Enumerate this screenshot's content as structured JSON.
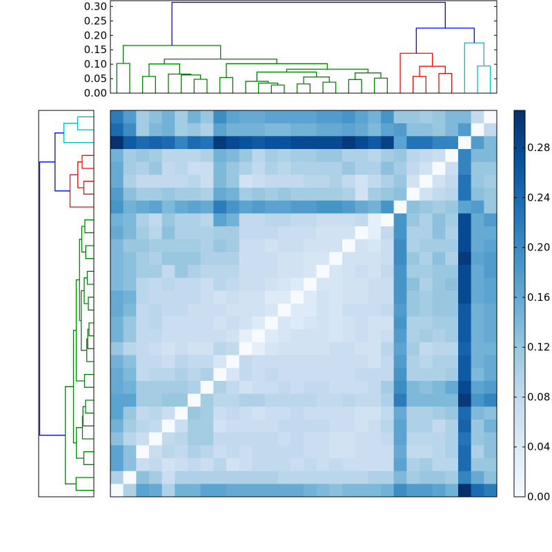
{
  "chart_data": [
    {
      "type": "dendrogram",
      "orientation": "top",
      "name": "column-dendrogram",
      "yticks": [
        "0.00",
        "0.05",
        "0.10",
        "0.15",
        "0.20",
        "0.25",
        "0.30"
      ],
      "ylim": [
        0,
        0.32
      ],
      "n_leaves": 30,
      "colors": {
        "green": "#008000",
        "red": "#ff0000",
        "cyan": "#00bfbf",
        "blue": "#0000ff"
      },
      "links": [
        {
          "l": [
            0,
            1
          ],
          "h": 0.103,
          "c": "green"
        },
        {
          "l": [
            2,
            3
          ],
          "h": 0.058,
          "c": "green"
        },
        {
          "l": [
            6,
            7
          ],
          "h": 0.048,
          "c": "green"
        },
        {
          "l": [
            5,
            "6-7"
          ],
          "h": 0.063,
          "c": "green"
        },
        {
          "l": [
            4,
            "5-7"
          ],
          "h": 0.066,
          "c": "green"
        },
        {
          "l": [
            "2-3",
            "4-7"
          ],
          "h": 0.101,
          "c": "green"
        },
        {
          "l": [
            8,
            9
          ],
          "h": 0.054,
          "c": "green"
        },
        {
          "l": [
            12,
            13
          ],
          "h": 0.028,
          "c": "green"
        },
        {
          "l": [
            11,
            "12-13"
          ],
          "h": 0.035,
          "c": "green"
        },
        {
          "l": [
            10,
            "11-13"
          ],
          "h": 0.041,
          "c": "green"
        },
        {
          "l": [
            14,
            15
          ],
          "h": 0.032,
          "c": "green"
        },
        {
          "l": [
            16,
            17
          ],
          "h": 0.038,
          "c": "green"
        },
        {
          "l": [
            "14-15",
            "16-17"
          ],
          "h": 0.056,
          "c": "green"
        },
        {
          "l": [
            "10-13",
            "14-17"
          ],
          "h": 0.073,
          "c": "green"
        },
        {
          "l": [
            18,
            19
          ],
          "h": 0.047,
          "c": "green"
        },
        {
          "l": [
            20,
            21
          ],
          "h": 0.052,
          "c": "green"
        },
        {
          "l": [
            "18-19",
            "20-21"
          ],
          "h": 0.07,
          "c": "green"
        },
        {
          "l": [
            "10-17",
            "18-21"
          ],
          "h": 0.083,
          "c": "green"
        },
        {
          "l": [
            "8-9",
            "10-21"
          ],
          "h": 0.102,
          "c": "green"
        },
        {
          "l": [
            "2-7",
            "8-21"
          ],
          "h": 0.118,
          "c": "green"
        },
        {
          "l": [
            "0-1",
            "2-21"
          ],
          "h": 0.165,
          "c": "green"
        },
        {
          "l": [
            23,
            24
          ],
          "h": 0.058,
          "c": "red"
        },
        {
          "l": [
            25,
            26
          ],
          "h": 0.068,
          "c": "red"
        },
        {
          "l": [
            "23-24",
            "25-26"
          ],
          "h": 0.093,
          "c": "red"
        },
        {
          "l": [
            22,
            "23-26"
          ],
          "h": 0.138,
          "c": "red"
        },
        {
          "l": [
            28,
            29
          ],
          "h": 0.094,
          "c": "cyan"
        },
        {
          "l": [
            27,
            "28-29"
          ],
          "h": 0.174,
          "c": "cyan"
        },
        {
          "l": [
            "22-26",
            "27-29"
          ],
          "h": 0.225,
          "c": "blue"
        },
        {
          "l": [
            "0-21",
            "22-29"
          ],
          "h": 0.314,
          "c": "blue"
        }
      ]
    },
    {
      "type": "dendrogram",
      "orientation": "left",
      "name": "row-dendrogram",
      "note": "mirror of column dendrogram, leaves ordered top-to-bottom as columns 29..0"
    },
    {
      "type": "heatmap",
      "name": "distance-matrix",
      "rows": 30,
      "cols": 30,
      "vmin": 0.0,
      "vmax": 0.31,
      "colormap": "Blues",
      "colorbar_ticks": [
        "0.00",
        "0.04",
        "0.08",
        "0.12",
        "0.16",
        "0.20",
        "0.24",
        "0.28"
      ],
      "row_order_note": "row i (top=0) shows distances of leaf 29-i to column leaves 0..29",
      "values": [
        [
          0.22,
          0.18,
          0.11,
          0.13,
          0.15,
          0.11,
          0.15,
          0.12,
          0.2,
          0.17,
          0.16,
          0.16,
          0.17,
          0.17,
          0.17,
          0.17,
          0.18,
          0.18,
          0.19,
          0.17,
          0.15,
          0.19,
          0.12,
          0.12,
          0.11,
          0.12,
          0.14,
          0.14,
          0.08,
          0.0
        ],
        [
          0.24,
          0.2,
          0.11,
          0.14,
          0.15,
          0.11,
          0.12,
          0.1,
          0.17,
          0.15,
          0.15,
          0.15,
          0.14,
          0.14,
          0.15,
          0.15,
          0.16,
          0.16,
          0.17,
          0.16,
          0.14,
          0.17,
          0.18,
          0.13,
          0.13,
          0.12,
          0.14,
          0.18,
          0.0,
          0.08
        ],
        [
          0.31,
          0.26,
          0.24,
          0.25,
          0.24,
          0.21,
          0.24,
          0.23,
          0.3,
          0.28,
          0.27,
          0.26,
          0.27,
          0.27,
          0.28,
          0.28,
          0.28,
          0.28,
          0.3,
          0.28,
          0.26,
          0.29,
          0.17,
          0.23,
          0.23,
          0.21,
          0.21,
          0.0,
          0.18,
          0.14
        ],
        [
          0.15,
          0.11,
          0.12,
          0.11,
          0.09,
          0.09,
          0.09,
          0.1,
          0.15,
          0.14,
          0.12,
          0.09,
          0.11,
          0.1,
          0.11,
          0.11,
          0.12,
          0.12,
          0.1,
          0.1,
          0.09,
          0.11,
          0.12,
          0.09,
          0.08,
          0.07,
          0.0,
          0.21,
          0.14,
          0.14
        ],
        [
          0.16,
          0.11,
          0.1,
          0.12,
          0.08,
          0.09,
          0.07,
          0.07,
          0.14,
          0.12,
          0.1,
          0.08,
          0.1,
          0.09,
          0.1,
          0.1,
          0.1,
          0.1,
          0.12,
          0.1,
          0.1,
          0.13,
          0.11,
          0.08,
          0.06,
          0.0,
          0.07,
          0.21,
          0.12,
          0.12
        ],
        [
          0.16,
          0.1,
          0.08,
          0.08,
          0.08,
          0.08,
          0.09,
          0.07,
          0.14,
          0.12,
          0.06,
          0.07,
          0.08,
          0.08,
          0.08,
          0.09,
          0.09,
          0.1,
          0.08,
          0.06,
          0.08,
          0.1,
          0.12,
          0.06,
          0.0,
          0.06,
          0.08,
          0.23,
          0.12,
          0.11
        ],
        [
          0.18,
          0.13,
          0.11,
          0.11,
          0.12,
          0.11,
          0.11,
          0.1,
          0.16,
          0.15,
          0.11,
          0.12,
          0.11,
          0.12,
          0.11,
          0.11,
          0.11,
          0.11,
          0.1,
          0.06,
          0.11,
          0.12,
          0.13,
          0.0,
          0.06,
          0.08,
          0.09,
          0.23,
          0.13,
          0.12
        ],
        [
          0.19,
          0.15,
          0.16,
          0.17,
          0.14,
          0.16,
          0.17,
          0.16,
          0.22,
          0.19,
          0.17,
          0.18,
          0.17,
          0.17,
          0.18,
          0.18,
          0.19,
          0.19,
          0.18,
          0.16,
          0.15,
          0.19,
          0.0,
          0.13,
          0.12,
          0.11,
          0.12,
          0.17,
          0.18,
          0.12
        ],
        [
          0.15,
          0.14,
          0.1,
          0.08,
          0.12,
          0.1,
          0.1,
          0.09,
          0.17,
          0.15,
          0.08,
          0.08,
          0.09,
          0.09,
          0.08,
          0.08,
          0.07,
          0.07,
          0.07,
          0.08,
          0.03,
          0.0,
          0.19,
          0.12,
          0.1,
          0.13,
          0.11,
          0.28,
          0.16,
          0.18
        ],
        [
          0.16,
          0.14,
          0.11,
          0.09,
          0.13,
          0.1,
          0.1,
          0.1,
          0.11,
          0.11,
          0.08,
          0.08,
          0.08,
          0.07,
          0.07,
          0.07,
          0.06,
          0.06,
          0.06,
          0.0,
          0.03,
          0.08,
          0.19,
          0.1,
          0.1,
          0.13,
          0.1,
          0.28,
          0.16,
          0.16
        ],
        [
          0.14,
          0.12,
          0.12,
          0.11,
          0.11,
          0.11,
          0.11,
          0.1,
          0.12,
          0.11,
          0.07,
          0.07,
          0.06,
          0.07,
          0.07,
          0.06,
          0.06,
          0.06,
          0.0,
          0.06,
          0.05,
          0.07,
          0.2,
          0.1,
          0.11,
          0.11,
          0.11,
          0.28,
          0.16,
          0.17
        ],
        [
          0.14,
          0.13,
          0.11,
          0.1,
          0.12,
          0.12,
          0.12,
          0.1,
          0.1,
          0.1,
          0.07,
          0.07,
          0.07,
          0.06,
          0.06,
          0.05,
          0.05,
          0.0,
          0.06,
          0.06,
          0.06,
          0.07,
          0.2,
          0.12,
          0.1,
          0.13,
          0.1,
          0.3,
          0.17,
          0.18
        ],
        [
          0.14,
          0.13,
          0.11,
          0.11,
          0.08,
          0.12,
          0.1,
          0.09,
          0.09,
          0.09,
          0.07,
          0.07,
          0.07,
          0.06,
          0.06,
          0.05,
          0.0,
          0.05,
          0.06,
          0.07,
          0.06,
          0.08,
          0.19,
          0.11,
          0.11,
          0.12,
          0.12,
          0.28,
          0.16,
          0.18
        ],
        [
          0.14,
          0.13,
          0.09,
          0.08,
          0.09,
          0.08,
          0.08,
          0.07,
          0.09,
          0.08,
          0.07,
          0.07,
          0.06,
          0.05,
          0.04,
          0.0,
          0.05,
          0.05,
          0.06,
          0.06,
          0.07,
          0.07,
          0.19,
          0.13,
          0.1,
          0.12,
          0.13,
          0.28,
          0.16,
          0.17
        ],
        [
          0.16,
          0.15,
          0.09,
          0.08,
          0.08,
          0.08,
          0.08,
          0.07,
          0.06,
          0.07,
          0.06,
          0.06,
          0.04,
          0.04,
          0.0,
          0.04,
          0.06,
          0.05,
          0.06,
          0.06,
          0.07,
          0.07,
          0.19,
          0.12,
          0.11,
          0.12,
          0.12,
          0.28,
          0.16,
          0.17
        ],
        [
          0.16,
          0.14,
          0.08,
          0.09,
          0.08,
          0.08,
          0.07,
          0.07,
          0.07,
          0.06,
          0.06,
          0.06,
          0.05,
          0.0,
          0.04,
          0.04,
          0.06,
          0.05,
          0.07,
          0.07,
          0.07,
          0.08,
          0.18,
          0.12,
          0.11,
          0.12,
          0.12,
          0.26,
          0.15,
          0.16
        ],
        [
          0.15,
          0.12,
          0.08,
          0.09,
          0.07,
          0.07,
          0.07,
          0.07,
          0.06,
          0.07,
          0.06,
          0.04,
          0.0,
          0.05,
          0.04,
          0.05,
          0.06,
          0.05,
          0.06,
          0.07,
          0.06,
          0.06,
          0.19,
          0.1,
          0.1,
          0.11,
          0.11,
          0.26,
          0.15,
          0.16
        ],
        [
          0.15,
          0.12,
          0.08,
          0.08,
          0.07,
          0.07,
          0.07,
          0.07,
          0.07,
          0.06,
          0.03,
          0.0,
          0.04,
          0.05,
          0.06,
          0.06,
          0.06,
          0.05,
          0.06,
          0.07,
          0.06,
          0.07,
          0.18,
          0.1,
          0.11,
          0.1,
          0.11,
          0.26,
          0.15,
          0.16
        ],
        [
          0.12,
          0.09,
          0.08,
          0.07,
          0.06,
          0.07,
          0.06,
          0.06,
          0.09,
          0.08,
          0.0,
          0.03,
          0.05,
          0.06,
          0.06,
          0.06,
          0.06,
          0.07,
          0.07,
          0.06,
          0.06,
          0.09,
          0.17,
          0.11,
          0.08,
          0.09,
          0.09,
          0.25,
          0.15,
          0.15
        ],
        [
          0.15,
          0.13,
          0.08,
          0.08,
          0.07,
          0.09,
          0.08,
          0.08,
          0.05,
          0.0,
          0.08,
          0.07,
          0.07,
          0.07,
          0.07,
          0.07,
          0.07,
          0.07,
          0.07,
          0.07,
          0.06,
          0.08,
          0.18,
          0.1,
          0.09,
          0.1,
          0.1,
          0.26,
          0.15,
          0.16
        ],
        [
          0.16,
          0.14,
          0.08,
          0.09,
          0.09,
          0.1,
          0.09,
          0.1,
          0.0,
          0.05,
          0.08,
          0.07,
          0.08,
          0.07,
          0.07,
          0.07,
          0.07,
          0.07,
          0.07,
          0.08,
          0.08,
          0.08,
          0.19,
          0.1,
          0.1,
          0.1,
          0.11,
          0.26,
          0.14,
          0.16
        ],
        [
          0.16,
          0.15,
          0.11,
          0.11,
          0.11,
          0.11,
          0.1,
          0.0,
          0.1,
          0.08,
          0.06,
          0.07,
          0.07,
          0.08,
          0.07,
          0.08,
          0.08,
          0.07,
          0.07,
          0.07,
          0.08,
          0.11,
          0.2,
          0.14,
          0.13,
          0.14,
          0.16,
          0.28,
          0.17,
          0.18
        ],
        [
          0.17,
          0.17,
          0.11,
          0.11,
          0.12,
          0.12,
          0.0,
          0.11,
          0.09,
          0.09,
          0.1,
          0.1,
          0.09,
          0.09,
          0.09,
          0.09,
          0.08,
          0.08,
          0.09,
          0.08,
          0.08,
          0.1,
          0.22,
          0.14,
          0.14,
          0.14,
          0.14,
          0.3,
          0.19,
          0.21
        ],
        [
          0.17,
          0.12,
          0.08,
          0.09,
          0.07,
          0.0,
          0.12,
          0.11,
          0.07,
          0.08,
          0.07,
          0.06,
          0.07,
          0.07,
          0.08,
          0.07,
          0.07,
          0.07,
          0.07,
          0.06,
          0.06,
          0.08,
          0.16,
          0.1,
          0.1,
          0.11,
          0.12,
          0.24,
          0.14,
          0.13
        ],
        [
          0.15,
          0.11,
          0.09,
          0.08,
          0.0,
          0.07,
          0.11,
          0.11,
          0.06,
          0.07,
          0.07,
          0.07,
          0.07,
          0.08,
          0.08,
          0.08,
          0.08,
          0.07,
          0.07,
          0.06,
          0.07,
          0.09,
          0.17,
          0.1,
          0.1,
          0.08,
          0.1,
          0.25,
          0.12,
          0.15
        ],
        [
          0.13,
          0.09,
          0.07,
          0.0,
          0.08,
          0.09,
          0.11,
          0.11,
          0.08,
          0.08,
          0.08,
          0.08,
          0.08,
          0.07,
          0.08,
          0.07,
          0.07,
          0.06,
          0.06,
          0.07,
          0.07,
          0.08,
          0.17,
          0.09,
          0.09,
          0.09,
          0.1,
          0.23,
          0.12,
          0.13
        ],
        [
          0.17,
          0.13,
          0.0,
          0.07,
          0.09,
          0.08,
          0.1,
          0.09,
          0.07,
          0.08,
          0.07,
          0.08,
          0.08,
          0.08,
          0.08,
          0.07,
          0.07,
          0.06,
          0.06,
          0.07,
          0.07,
          0.07,
          0.16,
          0.08,
          0.08,
          0.09,
          0.1,
          0.24,
          0.1,
          0.13
        ],
        [
          0.17,
          0.13,
          0.07,
          0.08,
          0.06,
          0.07,
          0.08,
          0.07,
          0.09,
          0.06,
          0.07,
          0.08,
          0.08,
          0.08,
          0.07,
          0.08,
          0.07,
          0.08,
          0.07,
          0.07,
          0.07,
          0.07,
          0.17,
          0.1,
          0.11,
          0.09,
          0.09,
          0.24,
          0.12,
          0.12
        ],
        [
          0.1,
          0.0,
          0.13,
          0.11,
          0.07,
          0.1,
          0.1,
          0.1,
          0.1,
          0.1,
          0.1,
          0.1,
          0.1,
          0.09,
          0.09,
          0.09,
          0.09,
          0.09,
          0.09,
          0.09,
          0.1,
          0.1,
          0.14,
          0.11,
          0.12,
          0.12,
          0.11,
          0.21,
          0.16,
          0.13
        ],
        [
          0.0,
          0.1,
          0.17,
          0.16,
          0.1,
          0.15,
          0.15,
          0.17,
          0.17,
          0.16,
          0.16,
          0.16,
          0.16,
          0.16,
          0.16,
          0.15,
          0.14,
          0.13,
          0.14,
          0.14,
          0.14,
          0.15,
          0.2,
          0.18,
          0.18,
          0.17,
          0.15,
          0.31,
          0.24,
          0.22
        ]
      ]
    }
  ]
}
